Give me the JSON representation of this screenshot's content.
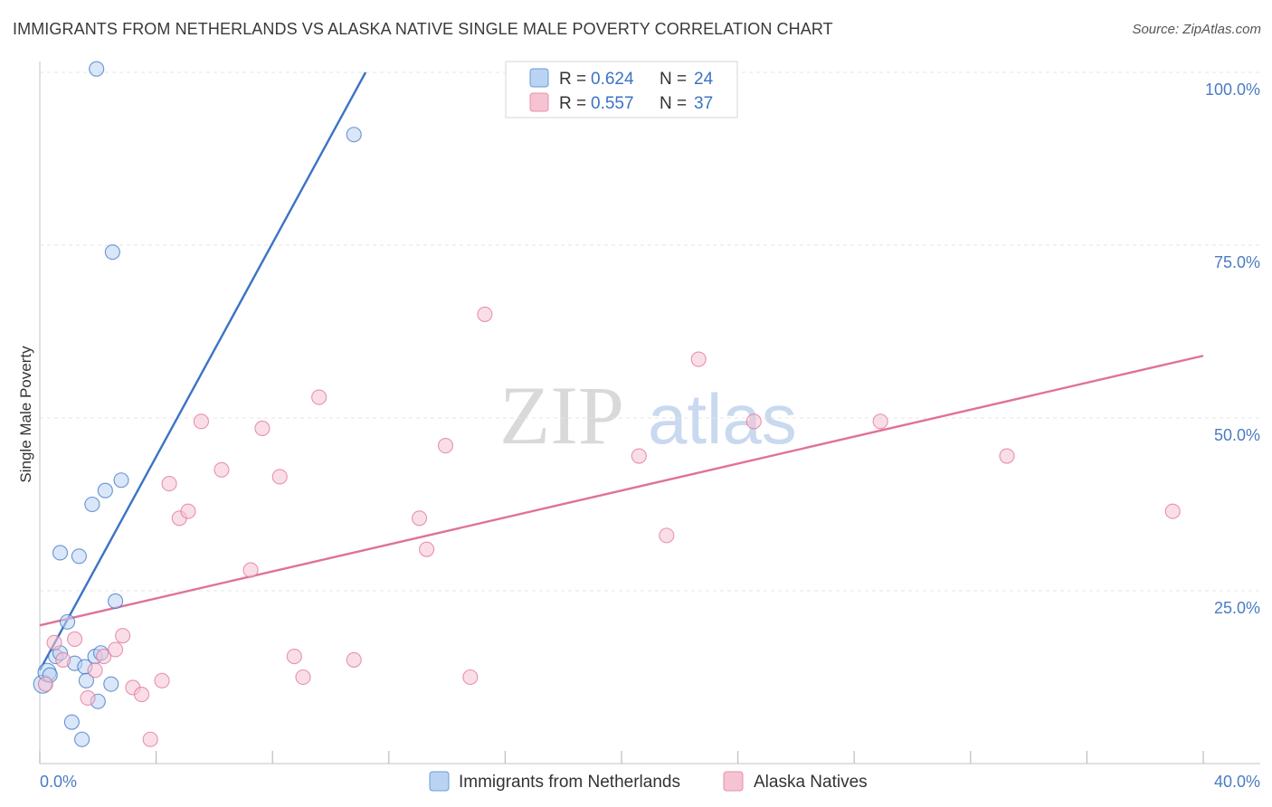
{
  "header": {
    "title": "IMMIGRANTS FROM NETHERLANDS VS ALASKA NATIVE SINGLE MALE POVERTY CORRELATION CHART",
    "source": "Source: ZipAtlas.com"
  },
  "watermark": {
    "zip": "ZIP",
    "atlas": "atlas"
  },
  "legend": {
    "r_label": "R =",
    "n_label": "N =",
    "series": [
      {
        "r": "0.624",
        "n": "24"
      },
      {
        "r": "0.557",
        "n": "37"
      }
    ]
  },
  "colors": {
    "blue": "#3b73c4",
    "blue_fill": "#b9d3f3",
    "pink": "#e0729a",
    "pink_fill": "#f6c3d3",
    "grid": "#e4e4e4"
  },
  "chart_data": {
    "type": "scatter",
    "title": "IMMIGRANTS FROM NETHERLANDS VS ALASKA NATIVE SINGLE MALE POVERTY CORRELATION CHART",
    "xlabel": "",
    "ylabel": "Single Male Poverty",
    "xlim": [
      0,
      40
    ],
    "ylim": [
      0,
      100
    ],
    "x_tick_labels": [
      "0.0%",
      "40.0%"
    ],
    "y_tick_labels": [
      "100.0%",
      "75.0%",
      "50.0%",
      "25.0%"
    ],
    "y_tick_values": [
      100,
      75,
      50,
      25
    ],
    "series": [
      {
        "name": "Immigrants from Netherlands",
        "color": "#3b73c4",
        "fill": "#b9d3f3",
        "trend": {
          "x": [
            0,
            11.2
          ],
          "y": [
            13.5,
            100
          ]
        },
        "points": [
          {
            "x": 0.1,
            "y": 11.5,
            "r": 10
          },
          {
            "x": 0.25,
            "y": 13.2,
            "r": 10
          },
          {
            "x": 0.35,
            "y": 12.8,
            "r": 8
          },
          {
            "x": 0.55,
            "y": 15.5,
            "r": 8
          },
          {
            "x": 0.7,
            "y": 16.0,
            "r": 8
          },
          {
            "x": 0.7,
            "y": 30.5,
            "r": 8
          },
          {
            "x": 0.95,
            "y": 20.5,
            "r": 8
          },
          {
            "x": 1.1,
            "y": 6.0,
            "r": 8
          },
          {
            "x": 1.2,
            "y": 14.5,
            "r": 8
          },
          {
            "x": 1.35,
            "y": 30.0,
            "r": 8
          },
          {
            "x": 1.45,
            "y": 3.5,
            "r": 8
          },
          {
            "x": 1.55,
            "y": 14.0,
            "r": 8
          },
          {
            "x": 1.6,
            "y": 12.0,
            "r": 8
          },
          {
            "x": 1.8,
            "y": 37.5,
            "r": 8
          },
          {
            "x": 1.9,
            "y": 15.5,
            "r": 8
          },
          {
            "x": 2.0,
            "y": 9.0,
            "r": 8
          },
          {
            "x": 2.1,
            "y": 16.0,
            "r": 8
          },
          {
            "x": 2.25,
            "y": 39.5,
            "r": 8
          },
          {
            "x": 2.45,
            "y": 11.5,
            "r": 8
          },
          {
            "x": 2.5,
            "y": 74.0,
            "r": 8
          },
          {
            "x": 2.6,
            "y": 23.5,
            "r": 8
          },
          {
            "x": 2.8,
            "y": 41.0,
            "r": 8
          },
          {
            "x": 1.95,
            "y": 100.5,
            "r": 8
          },
          {
            "x": 10.8,
            "y": 91.0,
            "r": 8
          }
        ]
      },
      {
        "name": "Alaska Natives",
        "color": "#e0729a",
        "fill": "#f6c3d3",
        "trend": {
          "x": [
            0,
            40
          ],
          "y": [
            20,
            59
          ]
        },
        "points": [
          {
            "x": 0.2,
            "y": 11.5,
            "r": 8
          },
          {
            "x": 0.5,
            "y": 17.5,
            "r": 8
          },
          {
            "x": 0.8,
            "y": 15.0,
            "r": 8
          },
          {
            "x": 1.2,
            "y": 18.0,
            "r": 8
          },
          {
            "x": 1.65,
            "y": 9.5,
            "r": 8
          },
          {
            "x": 1.9,
            "y": 13.5,
            "r": 8
          },
          {
            "x": 2.2,
            "y": 15.5,
            "r": 8
          },
          {
            "x": 2.6,
            "y": 16.5,
            "r": 8
          },
          {
            "x": 2.85,
            "y": 18.5,
            "r": 8
          },
          {
            "x": 3.2,
            "y": 11.0,
            "r": 8
          },
          {
            "x": 3.5,
            "y": 10.0,
            "r": 8
          },
          {
            "x": 3.8,
            "y": 3.5,
            "r": 8
          },
          {
            "x": 4.2,
            "y": 12.0,
            "r": 8
          },
          {
            "x": 4.45,
            "y": 40.5,
            "r": 8
          },
          {
            "x": 4.8,
            "y": 35.5,
            "r": 8
          },
          {
            "x": 5.1,
            "y": 36.5,
            "r": 8
          },
          {
            "x": 5.55,
            "y": 49.5,
            "r": 8
          },
          {
            "x": 6.25,
            "y": 42.5,
            "r": 8
          },
          {
            "x": 7.25,
            "y": 28.0,
            "r": 8
          },
          {
            "x": 7.65,
            "y": 48.5,
            "r": 8
          },
          {
            "x": 8.25,
            "y": 41.5,
            "r": 8
          },
          {
            "x": 8.75,
            "y": 15.5,
            "r": 8
          },
          {
            "x": 9.05,
            "y": 12.5,
            "r": 8
          },
          {
            "x": 9.6,
            "y": 53.0,
            "r": 8
          },
          {
            "x": 10.8,
            "y": 15.0,
            "r": 8
          },
          {
            "x": 13.05,
            "y": 35.5,
            "r": 8
          },
          {
            "x": 13.3,
            "y": 31.0,
            "r": 8
          },
          {
            "x": 13.95,
            "y": 46.0,
            "r": 8
          },
          {
            "x": 14.8,
            "y": 12.5,
            "r": 8
          },
          {
            "x": 15.3,
            "y": 65.0,
            "r": 8
          },
          {
            "x": 20.6,
            "y": 44.5,
            "r": 8
          },
          {
            "x": 21.55,
            "y": 33.0,
            "r": 8
          },
          {
            "x": 22.65,
            "y": 58.5,
            "r": 8
          },
          {
            "x": 24.55,
            "y": 49.5,
            "r": 8
          },
          {
            "x": 28.9,
            "y": 49.5,
            "r": 8
          },
          {
            "x": 33.25,
            "y": 44.5,
            "r": 8
          },
          {
            "x": 38.95,
            "y": 36.5,
            "r": 8
          }
        ]
      }
    ]
  }
}
